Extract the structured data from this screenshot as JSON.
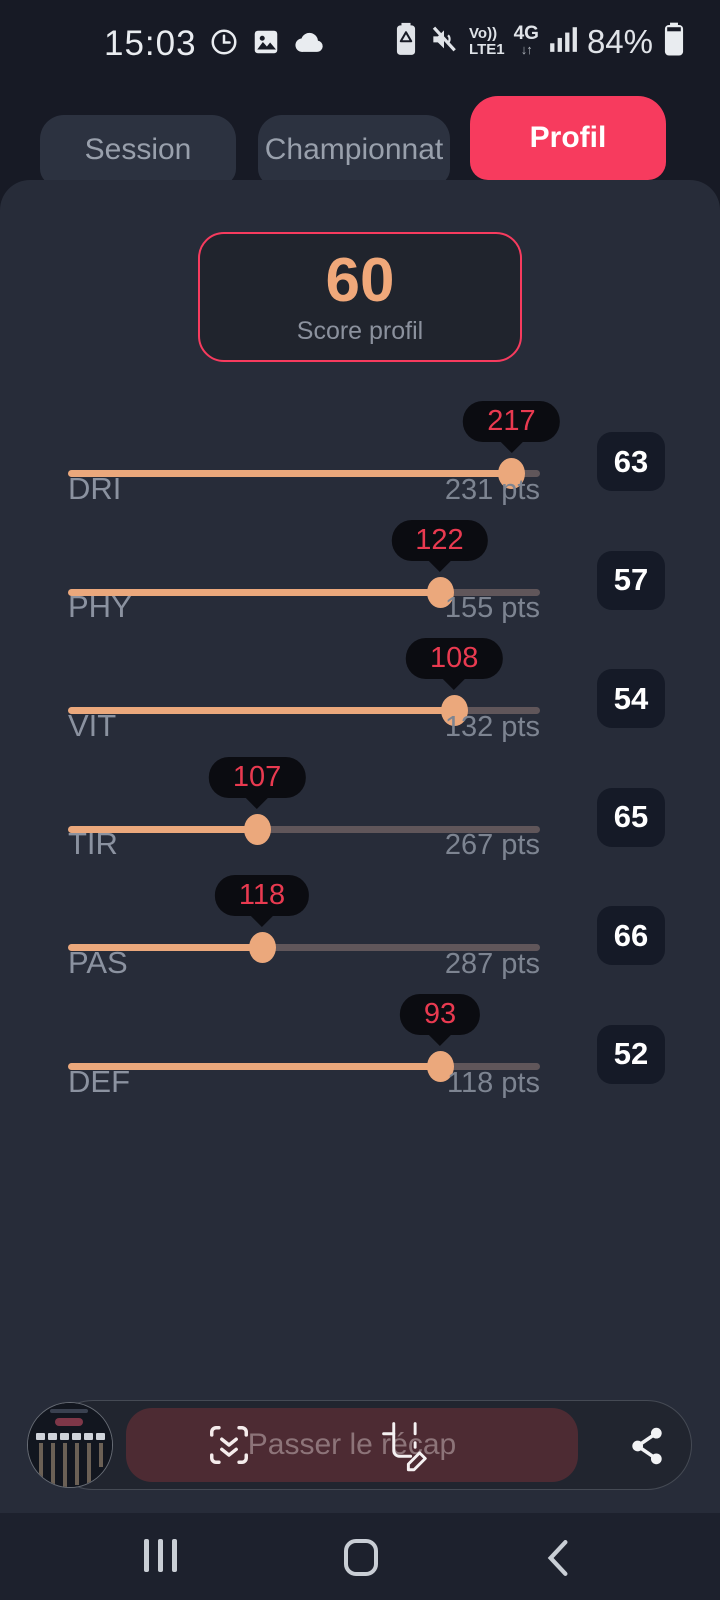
{
  "colors": {
    "accent_pink": "#f73b5e",
    "score_orange": "#f0a87a",
    "slider_fill": "#eba87c",
    "slider_track_rest": "#60565a",
    "tooltip_value_red": "#e93a50"
  },
  "status_bar": {
    "time": "15:03",
    "volte_line1": "Vo))",
    "volte_line2": "LTE1",
    "network_type": "4G",
    "network_arrows": "↓↑",
    "battery_percent": "84%"
  },
  "tabs": [
    {
      "label": "Session",
      "active": false
    },
    {
      "label": "Championnat",
      "active": false
    },
    {
      "label": "Profil",
      "active": true
    }
  ],
  "score_card": {
    "value": "60",
    "label": "Score profil"
  },
  "stats": [
    {
      "label": "DRI",
      "value": 217,
      "max": 231,
      "max_label": "231 pts",
      "rating": "63"
    },
    {
      "label": "PHY",
      "value": 122,
      "max": 155,
      "max_label": "155 pts",
      "rating": "57"
    },
    {
      "label": "VIT",
      "value": 108,
      "max": 132,
      "max_label": "132 pts",
      "rating": "54"
    },
    {
      "label": "TIR",
      "value": 107,
      "max": 267,
      "max_label": "267 pts",
      "rating": "65"
    },
    {
      "label": "PAS",
      "value": 118,
      "max": 287,
      "max_label": "287 pts",
      "rating": "66"
    },
    {
      "label": "DEF",
      "value": 93,
      "max": 118,
      "max_label": "118 pts",
      "rating": "52"
    }
  ],
  "screenshot_toolbar": {
    "scroll_capture_label": "Passer le récap"
  }
}
